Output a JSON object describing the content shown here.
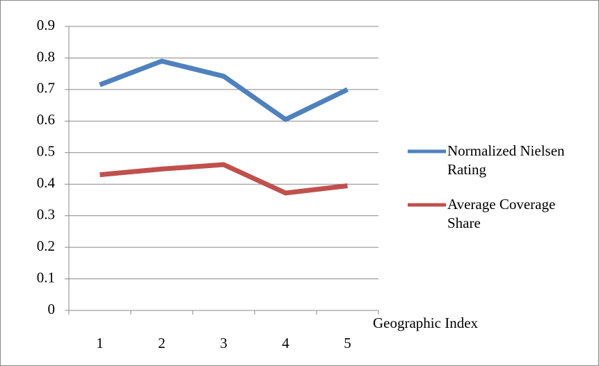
{
  "chart_data": {
    "type": "line",
    "x_label": "Geographic Index",
    "categories": [
      "1",
      "2",
      "3",
      "4",
      "5"
    ],
    "series": [
      {
        "name": "Normalized Nielsen Rating",
        "color": "#4f81bd",
        "values": [
          0.715,
          0.79,
          0.742,
          0.605,
          0.7
        ]
      },
      {
        "name": "Average Coverage Share",
        "color": "#c0504d",
        "values": [
          0.43,
          0.448,
          0.462,
          0.372,
          0.395
        ]
      }
    ],
    "ylim": [
      0,
      0.9
    ],
    "yticks": [
      0,
      0.1,
      0.2,
      0.3,
      0.4,
      0.5,
      0.6,
      0.7,
      0.8,
      0.9
    ],
    "grid": true,
    "legend": "right"
  }
}
